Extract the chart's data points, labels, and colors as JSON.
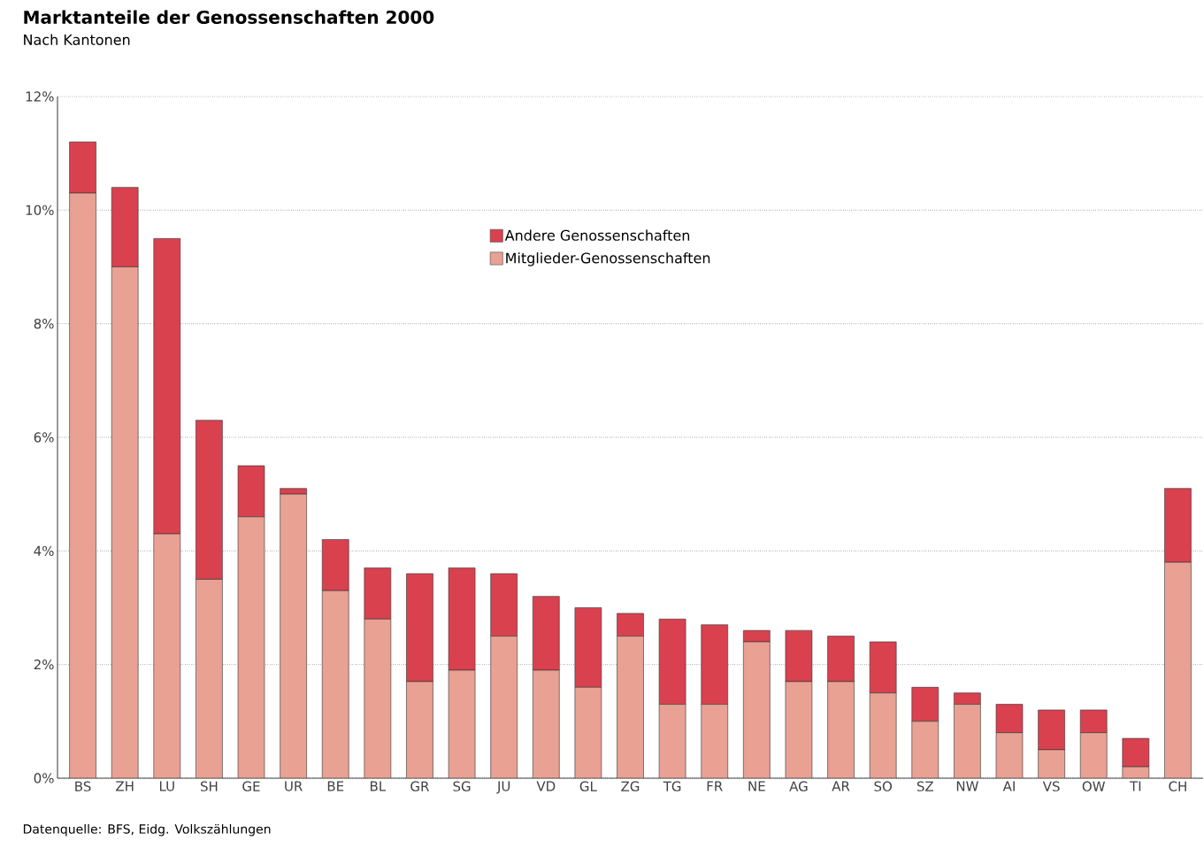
{
  "chart_data": {
    "type": "bar",
    "title": "Marktanteile der Genossenschaften 2000",
    "subtitle": "Nach Kantonen",
    "categories": [
      "BS",
      "ZH",
      "LU",
      "SH",
      "GE",
      "UR",
      "BE",
      "BL",
      "GR",
      "SG",
      "JU",
      "VD",
      "GL",
      "ZG",
      "TG",
      "FR",
      "NE",
      "AG",
      "AR",
      "SO",
      "SZ",
      "NW",
      "AI",
      "VS",
      "OW",
      "TI",
      "CH"
    ],
    "stacked": true,
    "series": [
      {
        "name": "Mitglieder-Genossenschaften",
        "color": "#e8a193",
        "values": [
          10.3,
          9.0,
          4.3,
          3.5,
          4.6,
          5.0,
          3.3,
          2.8,
          1.7,
          1.9,
          2.5,
          1.9,
          1.6,
          2.5,
          1.3,
          1.3,
          2.4,
          1.7,
          1.7,
          1.5,
          1.0,
          1.3,
          0.8,
          0.5,
          0.8,
          0.2,
          3.8
        ]
      },
      {
        "name": "Andere Genossenschaften",
        "color": "#d9414f",
        "values": [
          0.9,
          1.4,
          5.2,
          2.8,
          0.9,
          0.1,
          0.9,
          0.9,
          1.9,
          1.8,
          1.1,
          1.3,
          1.4,
          0.4,
          1.5,
          1.4,
          0.2,
          0.9,
          0.8,
          0.9,
          0.6,
          0.2,
          0.5,
          0.7,
          0.4,
          0.5,
          1.3
        ]
      }
    ],
    "ylim": [
      0,
      12
    ],
    "yticks": [
      {
        "value": 0,
        "label": "0%"
      },
      {
        "value": 2,
        "label": "2%"
      },
      {
        "value": 4,
        "label": "4%"
      },
      {
        "value": 6,
        "label": "6%"
      },
      {
        "value": 8,
        "label": "8%"
      },
      {
        "value": 10,
        "label": "10%"
      },
      {
        "value": 12,
        "label": "12%"
      }
    ],
    "grid": "y",
    "legend": "top",
    "annotations": [
      "Datenquelle: BFS, Eidg. Volkszählungen"
    ]
  }
}
